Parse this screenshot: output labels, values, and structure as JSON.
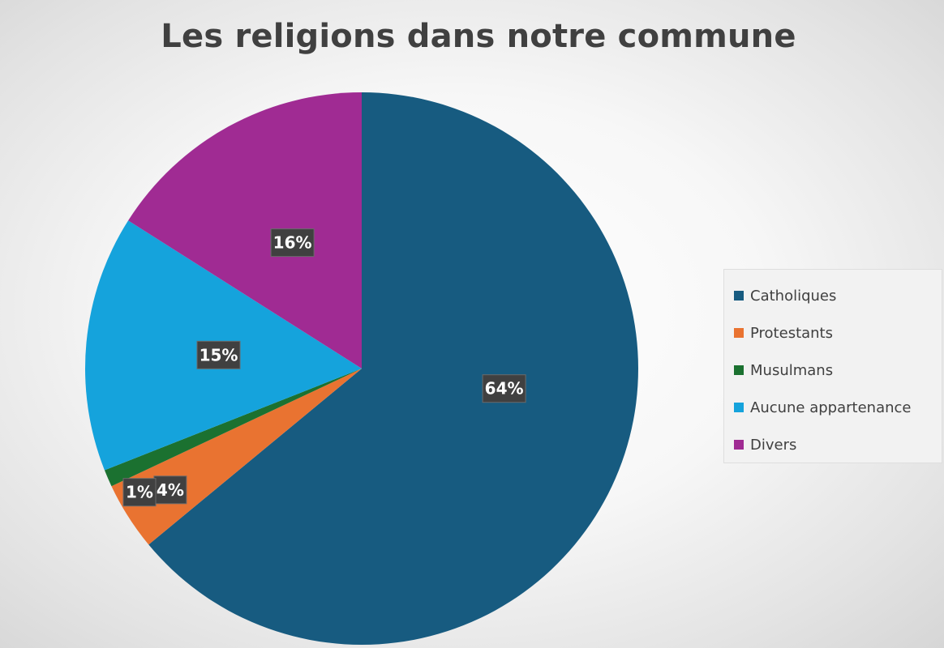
{
  "chart_data": {
    "type": "pie",
    "title": "Les religions dans notre commune",
    "legend_position": "right",
    "slices": [
      {
        "label": "Catholiques",
        "value": 64,
        "display": "64%",
        "color": "#175b80"
      },
      {
        "label": "Protestants",
        "value": 4,
        "display": "4%",
        "color": "#e97331"
      },
      {
        "label": "Musulmans",
        "value": 1,
        "display": "1%",
        "color": "#1b7130"
      },
      {
        "label": "Aucune appartenance",
        "value": 15,
        "display": "15%",
        "color": "#15a3dc"
      },
      {
        "label": "Divers",
        "value": 16,
        "display": "16%",
        "color": "#a02b93"
      }
    ]
  }
}
